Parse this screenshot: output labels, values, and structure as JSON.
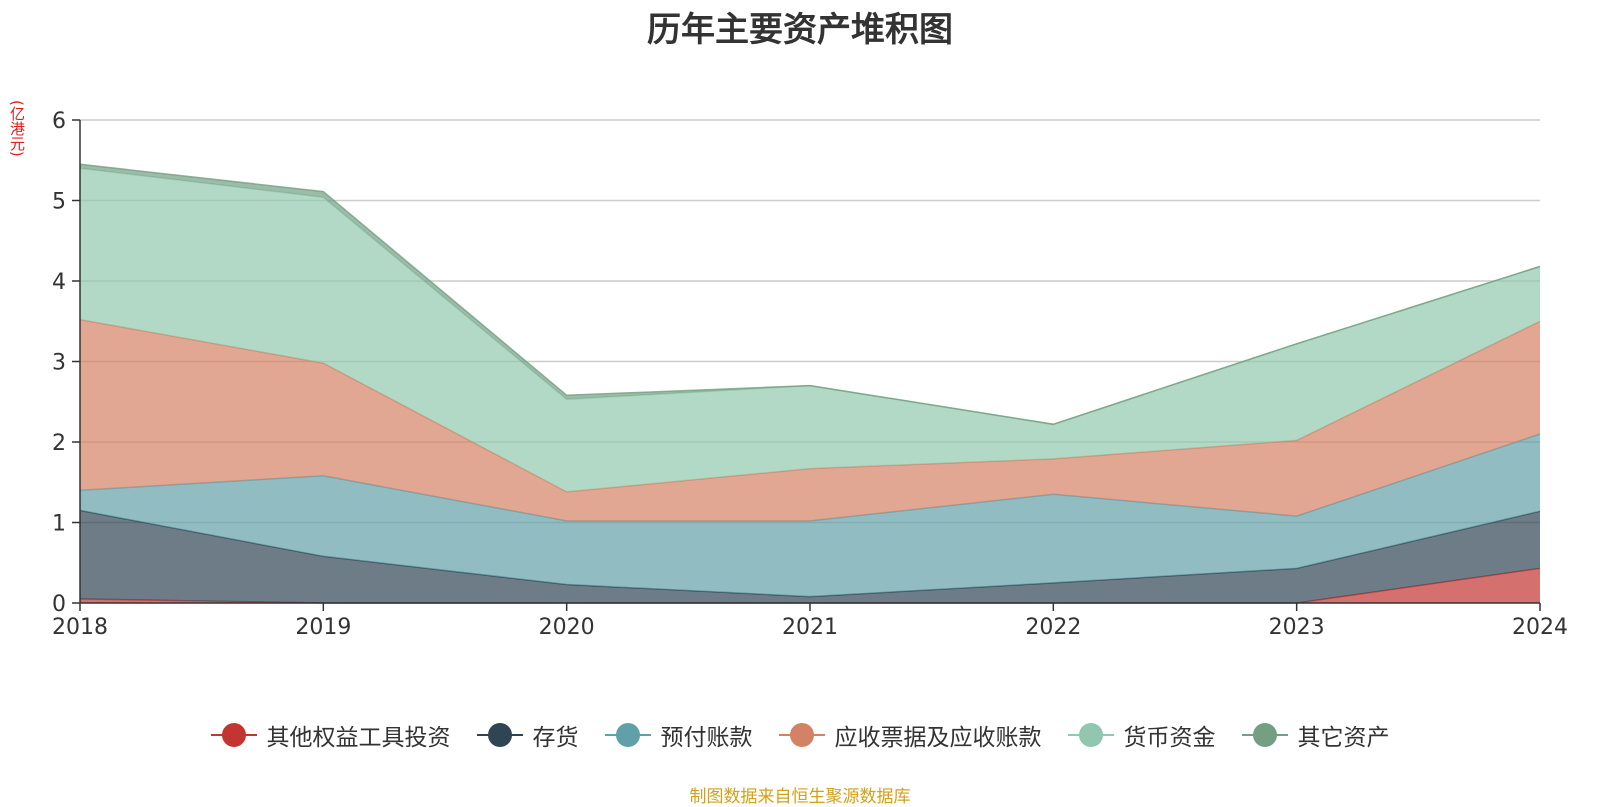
{
  "chart_data": {
    "type": "area",
    "stacked": true,
    "title": "历年主要资产堆积图",
    "unit": "(亿港元)",
    "x": [
      "2018",
      "2019",
      "2020",
      "2021",
      "2022",
      "2023",
      "2024"
    ],
    "ylim": [
      0,
      6
    ],
    "yticks": [
      "0",
      "1",
      "2",
      "3",
      "4",
      "5",
      "6"
    ],
    "grid": true,
    "legend_position": "bottom",
    "series": [
      {
        "name": "其他权益工具投资",
        "color": "#c23531",
        "values": [
          0.05,
          0.0,
          0.0,
          0.0,
          0.0,
          0.0,
          0.43
        ]
      },
      {
        "name": "存货",
        "color": "#2f4554",
        "values": [
          1.1,
          0.58,
          0.23,
          0.08,
          0.25,
          0.43,
          0.71
        ]
      },
      {
        "name": "预付账款",
        "color": "#61a0a8",
        "values": [
          0.25,
          1.0,
          0.79,
          0.94,
          1.1,
          0.65,
          0.96
        ]
      },
      {
        "name": "应收票据及应收账款",
        "color": "#d48265",
        "values": [
          2.12,
          1.4,
          0.36,
          0.65,
          0.44,
          0.94,
          1.4
        ]
      },
      {
        "name": "货币资金",
        "color": "#91c7ae",
        "values": [
          1.88,
          2.06,
          1.15,
          1.03,
          0.43,
          1.2,
          0.68
        ]
      },
      {
        "name": "其它资产",
        "color": "#749f83",
        "values": [
          0.05,
          0.07,
          0.05,
          0.0,
          0.0,
          0.0,
          0.0
        ]
      }
    ]
  },
  "source_note": "制图数据来自恒生聚源数据库"
}
